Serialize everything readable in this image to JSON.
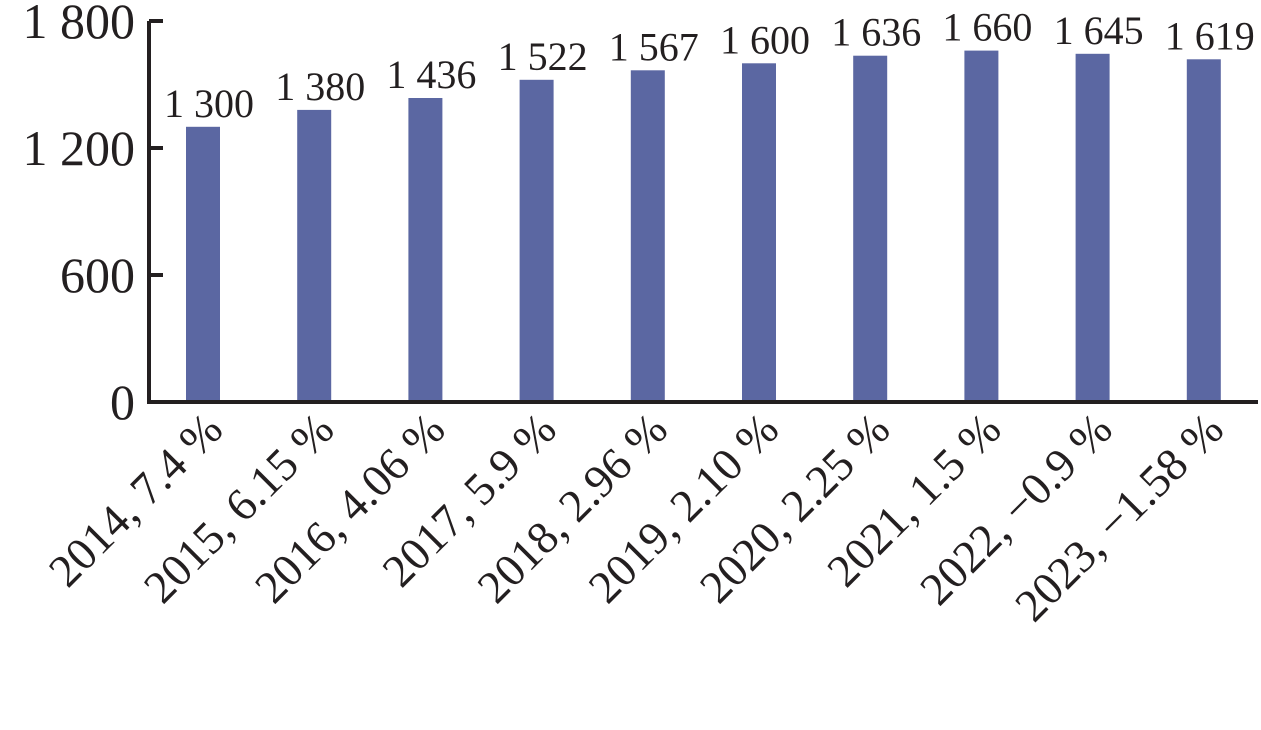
{
  "chart_data": {
    "type": "bar",
    "title": "",
    "xlabel": "",
    "ylabel": "",
    "ylim": [
      0,
      1800
    ],
    "yticks": [
      0,
      600,
      1200,
      1800
    ],
    "ytick_labels": [
      "0",
      "600",
      "1 200",
      "1 800"
    ],
    "categories": [
      "2014, 7.4 %",
      "2015, 6.15 %",
      "2016, 4.06 %",
      "2017, 5.9 %",
      "2018, 2.96 %",
      "2019, 2.10 %",
      "2020, 2.25 %",
      "2021, 1.5 %",
      "2022, −0.9 %",
      "2023, −1.58 %"
    ],
    "values": [
      1300,
      1380,
      1436,
      1522,
      1567,
      1600,
      1636,
      1660,
      1645,
      1619
    ],
    "value_labels": [
      "1 300",
      "1 380",
      "1 436",
      "1 522",
      "1 567",
      "1 600",
      "1 636",
      "1 660",
      "1 645",
      "1 619"
    ],
    "grid": false,
    "bar_color": "#5b67a2",
    "axis_color": "#231f20"
  }
}
